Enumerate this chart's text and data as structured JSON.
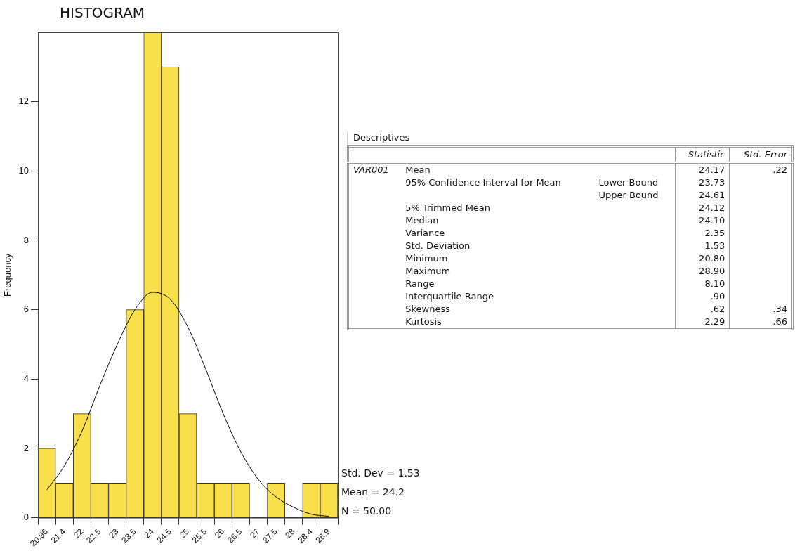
{
  "chart_data": [
    {
      "type": "bar",
      "title": "HISTOGRAM",
      "ylabel": "Frequency",
      "categories": [
        "20.96",
        "21.4",
        "22",
        "22.5",
        "23",
        "23.5",
        "24",
        "24.5",
        "25",
        "25.5",
        "26",
        "26.5",
        "27",
        "27.5",
        "28",
        "28.4",
        "28.9"
      ],
      "series": [
        {
          "type": "bar",
          "color": "#f9e04b",
          "values": [
            2,
            1,
            3,
            1,
            1,
            6,
            14,
            13,
            3,
            1,
            1,
            1,
            0,
            1,
            0,
            1,
            1
          ]
        },
        {
          "type": "line",
          "color": "#000000",
          "marker": "none",
          "values": [
            0.8,
            1.5,
            2.5,
            3.8,
            5.0,
            6.0,
            6.5,
            6.3,
            5.5,
            4.3,
            3.0,
            1.9,
            1.1,
            0.6,
            0.3,
            0.1,
            0.04
          ]
        }
      ],
      "ylim": [
        0,
        14
      ],
      "yticks": [
        0,
        2,
        4,
        6,
        8,
        10,
        12
      ],
      "grid": false,
      "legend": false,
      "annotations": [
        "Std. Dev = 1.53",
        "Mean = 24.2",
        "N = 50.00"
      ]
    },
    {
      "type": "other",
      "title": "Descriptives",
      "categories": [
        null,
        null,
        null,
        "Statistic",
        "Std. Error"
      ],
      "cell_labels": [
        [
          "VAR001",
          "Mean",
          null,
          "24.17",
          ".22"
        ],
        [
          null,
          "95% Confidence Interval for Mean",
          "Lower Bound",
          "23.73",
          null
        ],
        [
          null,
          null,
          "Upper Bound",
          "24.61",
          null
        ],
        [
          null,
          "5% Trimmed Mean",
          null,
          "24.12",
          null
        ],
        [
          null,
          "Median",
          null,
          "24.10",
          null
        ],
        [
          null,
          "Variance",
          null,
          "2.35",
          null
        ],
        [
          null,
          "Std. Deviation",
          null,
          "1.53",
          null
        ],
        [
          null,
          "Minimum",
          null,
          "20.80",
          null
        ],
        [
          null,
          "Maximum",
          null,
          "28.90",
          null
        ],
        [
          null,
          "Range",
          null,
          "8.10",
          null
        ],
        [
          null,
          "Interquartile Range",
          null,
          ".90",
          null
        ],
        [
          null,
          "Skewness",
          null,
          ".62",
          ".34"
        ],
        [
          null,
          "Kurtosis",
          null,
          "2.29",
          ".66"
        ]
      ]
    }
  ]
}
